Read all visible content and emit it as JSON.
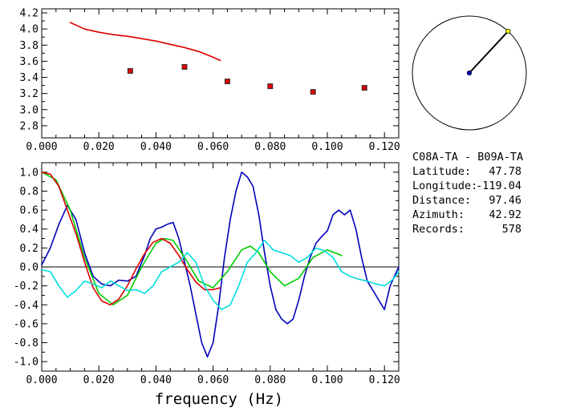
{
  "info": {
    "title": "C08A-TA  - B09A-TA",
    "rows": [
      {
        "label": "Latitude:",
        "value": "47.78"
      },
      {
        "label": "Longitude:",
        "value": "-119.04"
      },
      {
        "label": "Distance:",
        "value": "97.46"
      },
      {
        "label": "Azimuth:",
        "value": "42.92"
      },
      {
        "label": "Records:",
        "value": "578"
      }
    ]
  },
  "azimuth_deg": 42.92,
  "chart_data": [
    {
      "type": "scatter",
      "title": "",
      "xlabel": "",
      "ylabel": "",
      "xlim": [
        0.0,
        0.125
      ],
      "ylim": [
        2.65,
        4.25
      ],
      "x_ticks": [
        "0.000",
        "0.020",
        "0.040",
        "0.060",
        "0.080",
        "0.100",
        "0.120"
      ],
      "y_ticks": [
        "2.8",
        "3.0",
        "3.2",
        "3.4",
        "3.6",
        "3.8",
        "4.0",
        "4.2"
      ],
      "series": [
        {
          "color": "#dd0000",
          "kind": "line",
          "x": [
            0.01,
            0.015,
            0.02,
            0.025,
            0.03,
            0.035,
            0.04,
            0.045,
            0.05,
            0.055,
            0.06,
            0.0625
          ],
          "y": [
            4.08,
            4.0,
            3.96,
            3.93,
            3.91,
            3.88,
            3.85,
            3.81,
            3.77,
            3.72,
            3.65,
            3.61
          ]
        },
        {
          "color": "#dd0000",
          "kind": "points",
          "x": [
            0.031,
            0.05,
            0.065,
            0.08,
            0.095,
            0.113
          ],
          "y": [
            3.48,
            3.53,
            3.35,
            3.29,
            3.22,
            3.27
          ]
        }
      ]
    },
    {
      "type": "line",
      "title": "",
      "xlabel": "frequency (Hz)",
      "ylabel": "",
      "xlim": [
        0.0,
        0.125
      ],
      "ylim": [
        -1.1,
        1.1
      ],
      "x_ticks": [
        "0.000",
        "0.020",
        "0.040",
        "0.060",
        "0.080",
        "0.100",
        "0.120"
      ],
      "y_ticks": [
        "-1.0",
        "-0.8",
        "-0.6",
        "-0.4",
        "-0.2",
        "0.0",
        "0.2",
        "0.4",
        "0.6",
        "0.8",
        "1.0"
      ],
      "series": [
        {
          "color": "#0000bb",
          "x": [
            0,
            0.003,
            0.006,
            0.009,
            0.012,
            0.015,
            0.018,
            0.021,
            0.024,
            0.027,
            0.03,
            0.033,
            0.036,
            0.038,
            0.04,
            0.042,
            0.044,
            0.046,
            0.048,
            0.05,
            0.052,
            0.054,
            0.056,
            0.058,
            0.06,
            0.062,
            0.064,
            0.066,
            0.068,
            0.07,
            0.072,
            0.074,
            0.076,
            0.078,
            0.08,
            0.082,
            0.084,
            0.086,
            0.088,
            0.09,
            0.092,
            0.094,
            0.096,
            0.098,
            0.1,
            0.102,
            0.104,
            0.106,
            0.108,
            0.11,
            0.112,
            0.114,
            0.116,
            0.118,
            0.12,
            0.122,
            0.125
          ],
          "y": [
            0.02,
            0.2,
            0.45,
            0.65,
            0.5,
            0.15,
            -0.1,
            -0.18,
            -0.2,
            -0.14,
            -0.15,
            -0.1,
            0.12,
            0.3,
            0.4,
            0.42,
            0.45,
            0.47,
            0.3,
            0.05,
            -0.2,
            -0.5,
            -0.8,
            -0.95,
            -0.8,
            -0.4,
            0.1,
            0.5,
            0.8,
            1.0,
            0.95,
            0.85,
            0.55,
            0.15,
            -0.2,
            -0.45,
            -0.55,
            -0.6,
            -0.55,
            -0.35,
            -0.1,
            0.1,
            0.25,
            0.32,
            0.38,
            0.55,
            0.6,
            0.55,
            0.6,
            0.4,
            0.1,
            -0.15,
            -0.25,
            -0.35,
            -0.45,
            -0.2,
            0.0
          ]
        },
        {
          "color": "#00cc00",
          "x": [
            0,
            0.005,
            0.01,
            0.015,
            0.02,
            0.025,
            0.03,
            0.035,
            0.04,
            0.043,
            0.046,
            0.05,
            0.055,
            0.06,
            0.065,
            0.07,
            0.073,
            0.076,
            0.08,
            0.085,
            0.09,
            0.095,
            0.1,
            0.105
          ],
          "y": [
            1.0,
            0.92,
            0.6,
            0.1,
            -0.28,
            -0.4,
            -0.3,
            0.0,
            0.25,
            0.3,
            0.28,
            0.1,
            -0.15,
            -0.22,
            -0.05,
            0.18,
            0.22,
            0.15,
            -0.05,
            -0.2,
            -0.12,
            0.1,
            0.18,
            0.12
          ]
        },
        {
          "color": "#dd0000",
          "x": [
            0,
            0.003,
            0.006,
            0.009,
            0.012,
            0.015,
            0.018,
            0.021,
            0.024,
            0.027,
            0.03,
            0.033,
            0.036,
            0.039,
            0.042,
            0.045,
            0.048,
            0.051,
            0.054,
            0.057,
            0.06,
            0.0625
          ],
          "y": [
            1.0,
            0.98,
            0.85,
            0.6,
            0.35,
            0.05,
            -0.22,
            -0.36,
            -0.4,
            -0.34,
            -0.2,
            -0.02,
            0.14,
            0.26,
            0.3,
            0.25,
            0.12,
            -0.03,
            -0.16,
            -0.24,
            -0.24,
            -0.22
          ]
        },
        {
          "color": "#00dddd",
          "x": [
            0,
            0.003,
            0.006,
            0.009,
            0.012,
            0.015,
            0.018,
            0.021,
            0.024,
            0.027,
            0.03,
            0.033,
            0.036,
            0.039,
            0.042,
            0.045,
            0.048,
            0.051,
            0.054,
            0.057,
            0.06,
            0.063,
            0.066,
            0.069,
            0.072,
            0.075,
            0.078,
            0.081,
            0.084,
            0.087,
            0.09,
            0.093,
            0.096,
            0.099,
            0.102,
            0.105,
            0.108,
            0.111,
            0.114,
            0.117,
            0.12,
            0.123,
            0.125
          ],
          "y": [
            -0.03,
            -0.05,
            -0.2,
            -0.32,
            -0.25,
            -0.15,
            -0.18,
            -0.22,
            -0.15,
            -0.2,
            -0.25,
            -0.24,
            -0.28,
            -0.2,
            -0.05,
            0.0,
            0.05,
            0.15,
            0.05,
            -0.2,
            -0.35,
            -0.45,
            -0.4,
            -0.2,
            0.05,
            0.15,
            0.28,
            0.18,
            0.15,
            0.12,
            0.05,
            0.1,
            0.2,
            0.17,
            0.1,
            -0.05,
            -0.1,
            -0.13,
            -0.15,
            -0.18,
            -0.2,
            -0.13,
            -0.05
          ]
        }
      ]
    }
  ]
}
